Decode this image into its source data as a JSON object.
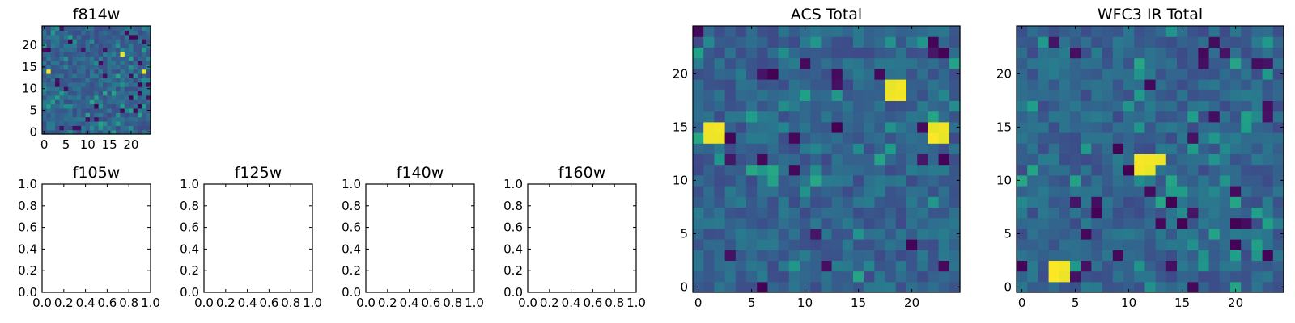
{
  "chart_data": [
    {
      "id": "f814w",
      "type": "heatmap",
      "title": "f814w",
      "xlim": [
        0,
        25
      ],
      "ylim": [
        0,
        25
      ],
      "xticks": [
        "0",
        "5",
        "10",
        "15",
        "20"
      ],
      "yticks": [
        "0",
        "5",
        "10",
        "15",
        "20"
      ],
      "colormap": "viridis",
      "grid": false,
      "bright_spots": [
        [
          1,
          14
        ],
        [
          18,
          18
        ],
        [
          23,
          14
        ]
      ]
    },
    {
      "id": "f105w",
      "type": "heatmap",
      "title": "f105w",
      "xlim": [
        0.0,
        1.0
      ],
      "ylim": [
        0.0,
        1.0
      ],
      "xticks": [
        "0.0",
        "0.2",
        "0.4",
        "0.6",
        "0.8",
        "1.0"
      ],
      "yticks": [
        "0.0",
        "0.2",
        "0.4",
        "0.6",
        "0.8",
        "1.0"
      ],
      "empty": true
    },
    {
      "id": "f125w",
      "type": "heatmap",
      "title": "f125w",
      "xlim": [
        0.0,
        1.0
      ],
      "ylim": [
        0.0,
        1.0
      ],
      "xticks": [
        "0.0",
        "0.2",
        "0.4",
        "0.6",
        "0.8",
        "1.0"
      ],
      "yticks": [
        "0.0",
        "0.2",
        "0.4",
        "0.6",
        "0.8",
        "1.0"
      ],
      "empty": true
    },
    {
      "id": "f140w",
      "type": "heatmap",
      "title": "f140w",
      "xlim": [
        0.0,
        1.0
      ],
      "ylim": [
        0.0,
        1.0
      ],
      "xticks": [
        "0.0",
        "0.2",
        "0.4",
        "0.6",
        "0.8",
        "1.0"
      ],
      "yticks": [
        "0.0",
        "0.2",
        "0.4",
        "0.6",
        "0.8",
        "1.0"
      ],
      "empty": true
    },
    {
      "id": "f160w",
      "type": "heatmap",
      "title": "f160w",
      "xlim": [
        0.0,
        1.0
      ],
      "ylim": [
        0.0,
        1.0
      ],
      "xticks": [
        "0.0",
        "0.2",
        "0.4",
        "0.6",
        "0.8",
        "1.0"
      ],
      "yticks": [
        "0.0",
        "0.2",
        "0.4",
        "0.6",
        "0.8",
        "1.0"
      ],
      "empty": true
    },
    {
      "id": "acs_total",
      "type": "heatmap",
      "title": "ACS Total",
      "xlim": [
        0,
        25
      ],
      "ylim": [
        0,
        25
      ],
      "xticks": [
        "0",
        "5",
        "10",
        "15",
        "20"
      ],
      "yticks": [
        "0",
        "5",
        "10",
        "15",
        "20"
      ],
      "colormap": "viridis",
      "grid": false,
      "bright_spots": [
        [
          1,
          14
        ],
        [
          2,
          14
        ],
        [
          1,
          15
        ],
        [
          2,
          15
        ],
        [
          18,
          18
        ],
        [
          19,
          18
        ],
        [
          18,
          19
        ],
        [
          19,
          19
        ],
        [
          22,
          14
        ],
        [
          23,
          14
        ],
        [
          22,
          15
        ],
        [
          23,
          15
        ]
      ]
    },
    {
      "id": "wfc3_ir_total",
      "type": "heatmap",
      "title": "WFC3 IR Total",
      "xlim": [
        0,
        25
      ],
      "ylim": [
        0,
        25
      ],
      "xticks": [
        "0",
        "5",
        "10",
        "15",
        "20"
      ],
      "yticks": [
        "0",
        "5",
        "10",
        "15",
        "20"
      ],
      "colormap": "viridis",
      "grid": false,
      "bright_spots": [
        [
          11,
          11
        ],
        [
          12,
          11
        ],
        [
          11,
          12
        ],
        [
          12,
          12
        ],
        [
          13,
          12
        ],
        [
          3,
          1
        ],
        [
          4,
          1
        ],
        [
          3,
          2
        ],
        [
          4,
          2
        ]
      ]
    }
  ],
  "colors": {
    "viridis_dark": "#440154",
    "viridis_mid": "#21918c",
    "viridis_bright": "#fde725",
    "axes": "#000000",
    "background": "#ffffff"
  }
}
